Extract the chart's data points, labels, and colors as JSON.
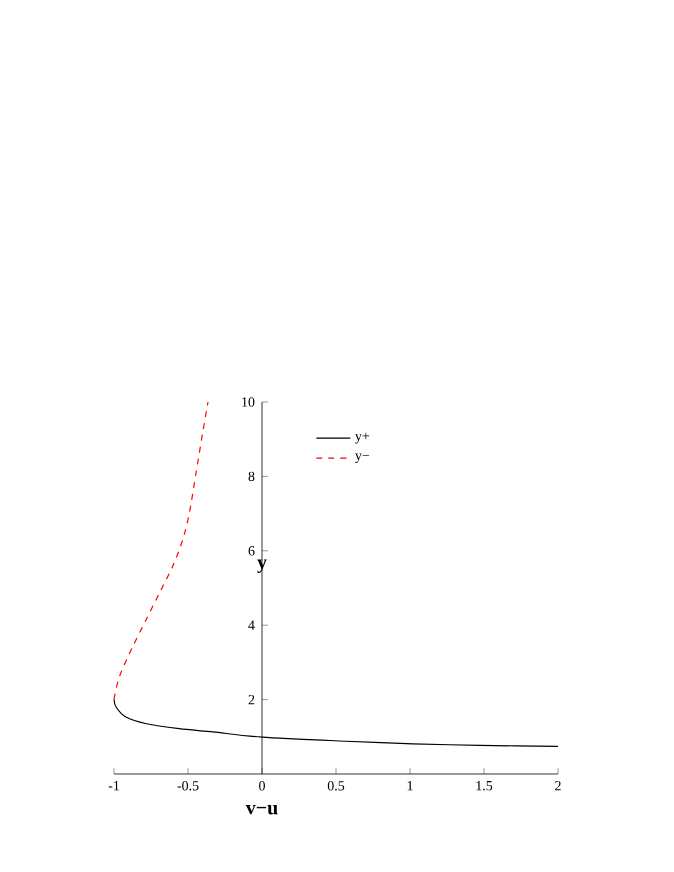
{
  "chart_data": {
    "type": "line",
    "xlabel": "v−u",
    "ylabel": "y",
    "xlim": [
      -1,
      2
    ],
    "ylim": [
      0,
      10
    ],
    "xticks": [
      -1,
      -0.5,
      0,
      0.5,
      1,
      1.5,
      2
    ],
    "yticks": [
      2,
      4,
      6,
      8,
      10
    ],
    "legend": "top right",
    "grid": false,
    "marker": "none",
    "series": [
      {
        "name": "y+",
        "color": "#000000",
        "line_style": "solid",
        "x": [
          -1,
          -0.986,
          -0.92,
          -0.78,
          -0.56,
          -0.33,
          0,
          0.57,
          1.02,
          1.47,
          2
        ],
        "values": [
          2.01,
          1.8,
          1.53,
          1.35,
          1.22,
          1.13,
          0.99,
          0.88,
          0.81,
          0.77,
          0.74
        ]
      },
      {
        "name": "y−",
        "color": "#ff0000",
        "line_style": "dashed",
        "x": [
          -1,
          -0.964,
          -0.874,
          -0.784,
          -0.694,
          -0.604,
          -0.536,
          -0.491,
          -0.446,
          -0.401,
          -0.365
        ],
        "values": [
          2.01,
          2.61,
          3.42,
          4.14,
          4.86,
          5.58,
          6.29,
          7.01,
          8.09,
          9.17,
          10
        ]
      }
    ]
  }
}
